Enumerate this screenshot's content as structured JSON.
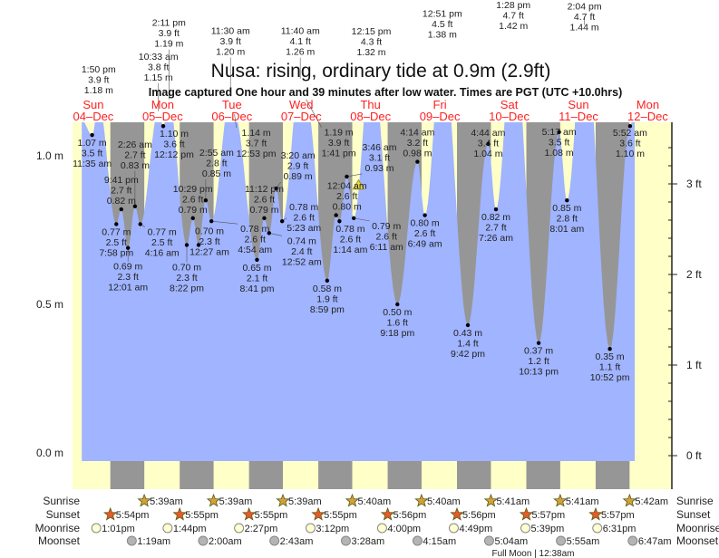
{
  "chart_data": {
    "type": "area",
    "title": "Nusa: rising, ordinary tide at 0.9m (2.9ft)",
    "subtitle": "Image captured One hour and 39 minutes after low water. Times are PGT (UTC +10.0hrs)",
    "y_left_ticks": [
      {
        "value": 1.0,
        "label": "1.0 m"
      },
      {
        "value": 0.5,
        "label": "0.5 m"
      },
      {
        "value": 0.0,
        "label": "0.0 m"
      }
    ],
    "y_right_ticks": [
      {
        "value": 3,
        "label": "3 ft"
      },
      {
        "value": 2,
        "label": "2 ft"
      },
      {
        "value": 1,
        "label": "1 ft"
      },
      {
        "value": 0,
        "label": "0 ft"
      }
    ],
    "ylim_m": [
      -0.03,
      1.11
    ],
    "days": [
      {
        "dow": "Sun",
        "date": "04–Dec"
      },
      {
        "dow": "Mon",
        "date": "05–Dec"
      },
      {
        "dow": "Tue",
        "date": "06–Dec"
      },
      {
        "dow": "Wed",
        "date": "07–Dec"
      },
      {
        "dow": "Thu",
        "date": "08–Dec"
      },
      {
        "dow": "Fri",
        "date": "09–Dec"
      },
      {
        "dow": "Sat",
        "date": "10–Dec"
      },
      {
        "dow": "Sun",
        "date": "11–Dec"
      },
      {
        "dow": "Mon",
        "date": "12–Dec"
      }
    ],
    "extremes": [
      {
        "day": 0,
        "time": "11:35 am",
        "m": "1.07 m",
        "ft": "3.5 ft",
        "h": 1.07,
        "type": "low"
      },
      {
        "day": 0,
        "time": "1:50 pm",
        "m": "1.18 m",
        "ft": "3.9 ft",
        "h": 1.18,
        "type": "high"
      },
      {
        "day": 0,
        "time": "7:58 pm",
        "m": "0.77 m",
        "ft": "2.5 ft",
        "h": 0.77,
        "type": "low"
      },
      {
        "day": 0,
        "time": "9:41 pm",
        "m": "0.82 m",
        "ft": "2.7 ft",
        "h": 0.82,
        "type": "high"
      },
      {
        "day": 1,
        "time": "12:01 am",
        "m": "0.69 m",
        "ft": "2.3 ft",
        "h": 0.69,
        "type": "low"
      },
      {
        "day": 1,
        "time": "2:26 am",
        "m": "0.83 m",
        "ft": "2.7 ft",
        "h": 0.83,
        "type": "high"
      },
      {
        "day": 1,
        "time": "4:16 am",
        "m": "0.77 m",
        "ft": "2.5 ft",
        "h": 0.77,
        "type": "low"
      },
      {
        "day": 1,
        "time": "10:33 am",
        "m": "1.15 m",
        "ft": "3.8 ft",
        "h": 1.15,
        "type": "high"
      },
      {
        "day": 1,
        "time": "12:12 pm",
        "m": "1.10 m",
        "ft": "3.6 ft",
        "h": 1.1,
        "type": "low"
      },
      {
        "day": 1,
        "time": "2:11 pm",
        "m": "1.19 m",
        "ft": "3.9 ft",
        "h": 1.19,
        "type": "high"
      },
      {
        "day": 1,
        "time": "8:22 pm",
        "m": "0.70 m",
        "ft": "2.3 ft",
        "h": 0.7,
        "type": "low"
      },
      {
        "day": 1,
        "time": "10:29 pm",
        "m": "0.79 m",
        "ft": "2.6 ft",
        "h": 0.79,
        "type": "high"
      },
      {
        "day": 2,
        "time": "12:27 am",
        "m": "0.70 m",
        "ft": "2.3 ft",
        "h": 0.7,
        "type": "low"
      },
      {
        "day": 2,
        "time": "2:55 am",
        "m": "0.85 m",
        "ft": "2.8 ft",
        "h": 0.85,
        "type": "high"
      },
      {
        "day": 2,
        "time": "4:54 am",
        "m": "0.78 m",
        "ft": "2.6 ft",
        "h": 0.78,
        "type": "low"
      },
      {
        "day": 2,
        "time": "11:30 am",
        "m": "1.20 m",
        "ft": "3.9 ft",
        "h": 1.2,
        "type": "high"
      },
      {
        "day": 2,
        "time": "12:53 pm",
        "m": "1.14 m",
        "ft": "3.7 ft",
        "h": 1.14,
        "type": "low"
      },
      {
        "day": 2,
        "time": "8:41 pm",
        "m": "0.65 m",
        "ft": "2.1 ft",
        "h": 0.65,
        "type": "low"
      },
      {
        "day": 2,
        "time": "11:12 pm",
        "m": "0.79 m",
        "ft": "2.6 ft",
        "h": 0.79,
        "type": "high"
      },
      {
        "day": 3,
        "time": "12:52 am",
        "m": "0.74 m",
        "ft": "2.4 ft",
        "h": 0.74,
        "type": "low"
      },
      {
        "day": 3,
        "time": "3:20 am",
        "m": "0.89 m",
        "ft": "2.9 ft",
        "h": 0.89,
        "type": "high"
      },
      {
        "day": 3,
        "time": "5:23 am",
        "m": "0.78 m",
        "ft": "2.6 ft",
        "h": 0.78,
        "type": "low"
      },
      {
        "day": 3,
        "time": "11:40 am",
        "m": "1.26 m",
        "ft": "4.1 ft",
        "h": 1.26,
        "type": "high"
      },
      {
        "day": 3,
        "time": "1:41 pm",
        "m": "1.19 m",
        "ft": "3.9 ft",
        "h": 1.19,
        "type": "low"
      },
      {
        "day": 3,
        "time": "8:59 pm",
        "m": "0.58 m",
        "ft": "1.9 ft",
        "h": 0.58,
        "type": "low"
      },
      {
        "day": 4,
        "time": "12:04 am",
        "m": "0.80 m",
        "ft": "2.6 ft",
        "h": 0.8,
        "type": "high"
      },
      {
        "day": 4,
        "time": "1:14 am",
        "m": "0.78 m",
        "ft": "2.6 ft",
        "h": 0.78,
        "type": "low"
      },
      {
        "day": 4,
        "time": "3:46 am",
        "m": "0.93 m",
        "ft": "3.1 ft",
        "h": 0.93,
        "type": "high"
      },
      {
        "day": 4,
        "time": "6:11 am",
        "m": "0.79 m",
        "ft": "2.6 ft",
        "h": 0.79,
        "type": "low"
      },
      {
        "day": 4,
        "time": "12:15 pm",
        "m": "1.32 m",
        "ft": "4.3 ft",
        "h": 1.32,
        "type": "high"
      },
      {
        "day": 4,
        "time": "9:18 pm",
        "m": "0.50 m",
        "ft": "1.6 ft",
        "h": 0.5,
        "type": "low"
      },
      {
        "day": 5,
        "time": "4:14 am",
        "m": "0.98 m",
        "ft": "3.2 ft",
        "h": 0.98,
        "type": "high"
      },
      {
        "day": 5,
        "time": "6:49 am",
        "m": "0.80 m",
        "ft": "2.6 ft",
        "h": 0.8,
        "type": "low"
      },
      {
        "day": 5,
        "time": "12:51 pm",
        "m": "1.38 m",
        "ft": "4.5 ft",
        "h": 1.38,
        "type": "high"
      },
      {
        "day": 5,
        "time": "9:42 pm",
        "m": "0.43 m",
        "ft": "1.4 ft",
        "h": 0.43,
        "type": "low"
      },
      {
        "day": 6,
        "time": "4:44 am",
        "m": "1.04 m",
        "ft": "3.4 ft",
        "h": 1.04,
        "type": "high"
      },
      {
        "day": 6,
        "time": "7:26 am",
        "m": "0.82 m",
        "ft": "2.7 ft",
        "h": 0.82,
        "type": "low"
      },
      {
        "day": 6,
        "time": "1:28 pm",
        "m": "1.42 m",
        "ft": "4.7 ft",
        "h": 1.42,
        "type": "high"
      },
      {
        "day": 6,
        "time": "10:13 pm",
        "m": "0.37 m",
        "ft": "1.2 ft",
        "h": 0.37,
        "type": "low"
      },
      {
        "day": 7,
        "time": "5:17 am",
        "m": "1.08 m",
        "ft": "3.5 ft",
        "h": 1.08,
        "type": "high"
      },
      {
        "day": 7,
        "time": "8:01 am",
        "m": "0.85 m",
        "ft": "2.8 ft",
        "h": 0.85,
        "type": "low"
      },
      {
        "day": 7,
        "time": "2:04 pm",
        "m": "1.44 m",
        "ft": "4.7 ft",
        "h": 1.44,
        "type": "high"
      },
      {
        "day": 7,
        "time": "10:52 pm",
        "m": "0.35 m",
        "ft": "1.1 ft",
        "h": 0.35,
        "type": "low"
      },
      {
        "day": 8,
        "time": "5:52 am",
        "m": "1.10 m",
        "ft": "3.6 ft",
        "h": 1.1,
        "type": "high"
      }
    ],
    "current": {
      "day": 4,
      "time": "7:50 am",
      "h": 0.9
    },
    "colors": {
      "water": "#a0b4ff",
      "day": "#ffffc8",
      "night": "#969696",
      "marker": "#f0e040",
      "label_day": "#ff2020"
    }
  },
  "rows": {
    "sunrise": {
      "label": "Sunrise",
      "first_day": 1,
      "times": [
        "5:39am",
        "5:39am",
        "5:39am",
        "5:40am",
        "5:40am",
        "5:41am",
        "5:41am",
        "5:42am"
      ]
    },
    "sunset": {
      "label": "Sunset",
      "first_day": 0,
      "times": [
        "5:54pm",
        "5:55pm",
        "5:55pm",
        "5:55pm",
        "5:56pm",
        "5:56pm",
        "5:57pm",
        "5:57pm"
      ]
    },
    "moonrise": {
      "label": "Moonrise",
      "first_day": 0,
      "times": [
        "1:01pm",
        "1:44pm",
        "2:27pm",
        "3:12pm",
        "4:00pm",
        "4:49pm",
        "5:39pm",
        "6:31pm"
      ]
    },
    "moonset": {
      "label": "Moonset",
      "first_day": 1,
      "times": [
        "1:19am",
        "2:00am",
        "2:43am",
        "3:28am",
        "4:15am",
        "5:04am",
        "5:55am",
        "6:47am"
      ]
    }
  },
  "moon_phase": {
    "text": "Full Moon | 12:38am",
    "day": 7
  }
}
